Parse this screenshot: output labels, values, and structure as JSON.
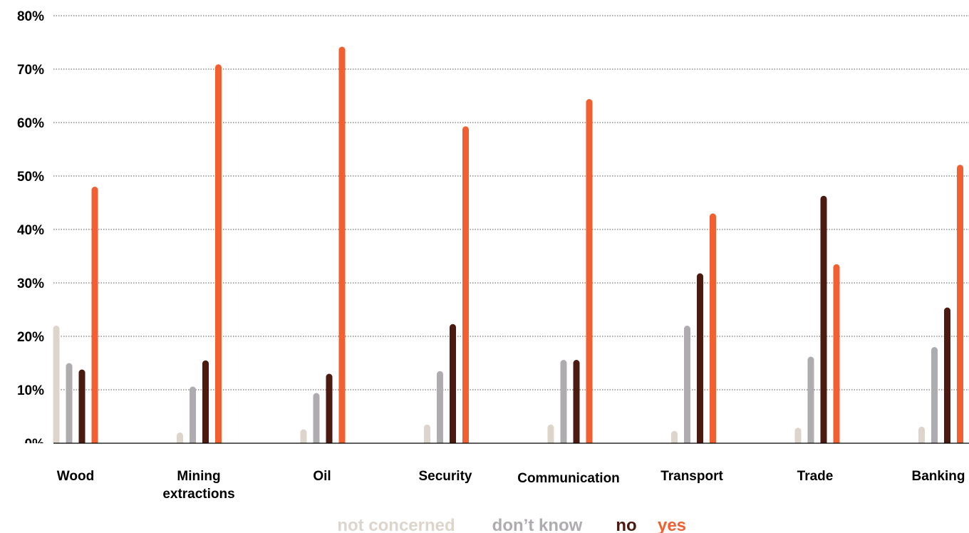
{
  "chart_data": {
    "type": "bar",
    "title": "",
    "xlabel": "",
    "ylabel": "",
    "ylim": [
      0,
      80
    ],
    "yticks": [
      "0%",
      "10%",
      "20%",
      "30%",
      "40%",
      "50%",
      "60%",
      "70%",
      "80%"
    ],
    "ytick_values": [
      0,
      10,
      20,
      30,
      40,
      50,
      60,
      70,
      80
    ],
    "grid": true,
    "legend_position": "bottom",
    "categories": [
      "Wood",
      "Mining extractions",
      "Oil",
      "Security",
      "Communication",
      "Transport",
      "Trade",
      "Banking"
    ],
    "category_labels": [
      [
        "Wood"
      ],
      [
        "Mining",
        "extractions"
      ],
      [
        "Oil"
      ],
      [
        "Security"
      ],
      [
        "Communication"
      ],
      [
        "Transport"
      ],
      [
        "Trade"
      ],
      [
        "Banking"
      ]
    ],
    "series": [
      {
        "name": "not concerned",
        "color": "#ddd5cc",
        "values": [
          22,
          2,
          2.6,
          3.5,
          3.5,
          2.3,
          2.9,
          3.1
        ]
      },
      {
        "name": "don't know",
        "color": "#aeacae",
        "values": [
          15,
          10.6,
          9.4,
          13.5,
          15.6,
          22,
          16.2,
          18
        ]
      },
      {
        "name": "no",
        "color": "#4b1a10",
        "values": [
          13.8,
          15.5,
          13,
          22.3,
          15.6,
          31.8,
          46.3,
          25.4
        ]
      },
      {
        "name": "yes",
        "color": "#f26032",
        "values": [
          48,
          70.9,
          74.2,
          59.3,
          64.4,
          43,
          33.5,
          52.1
        ]
      }
    ],
    "legend_labels": [
      "not concerned",
      "don’t know",
      "no",
      "yes"
    ]
  }
}
